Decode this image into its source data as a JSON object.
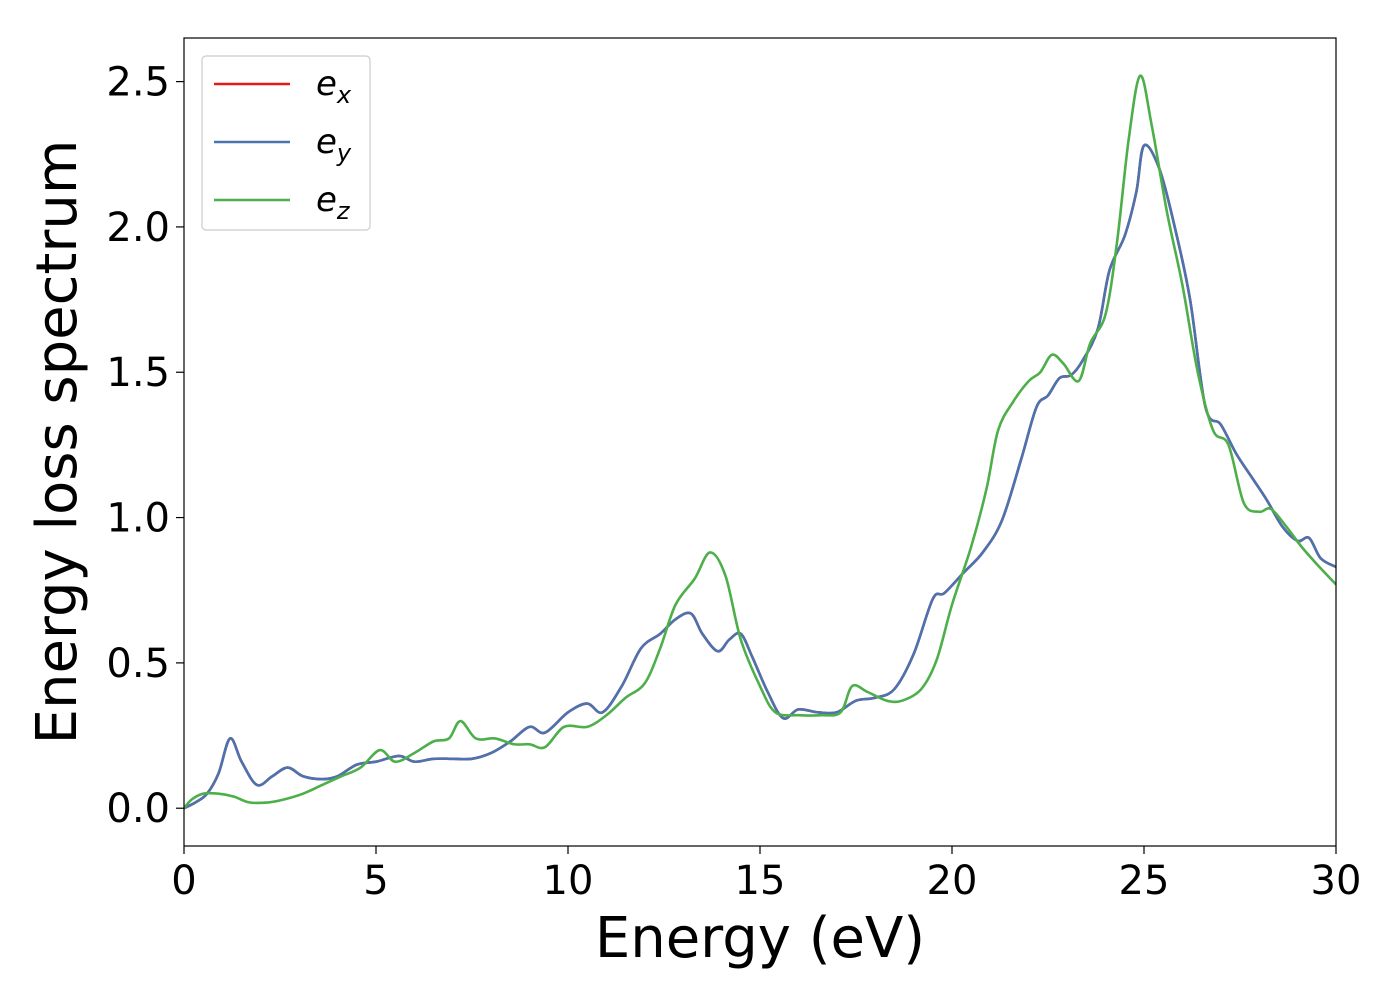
{
  "chart_data": {
    "type": "line",
    "title": "",
    "xlabel": "Energy (eV)",
    "ylabel": "Energy loss spectrum",
    "xlim": [
      0,
      30
    ],
    "ylim": [
      -0.13,
      2.65
    ],
    "x_ticks": [
      0,
      5,
      10,
      15,
      20,
      25,
      30
    ],
    "x_tick_labels": [
      "0",
      "5",
      "10",
      "15",
      "20",
      "25",
      "30"
    ],
    "y_ticks": [
      0.0,
      0.5,
      1.0,
      1.5,
      2.0,
      2.5
    ],
    "y_tick_labels": [
      "0.0",
      "0.5",
      "1.0",
      "1.5",
      "2.0",
      "2.5"
    ],
    "grid": false,
    "legend_position": "top-left",
    "series": [
      {
        "name": "e",
        "subscript": "x",
        "color": "#e41a1c",
        "points": [
          [
            0,
            0
          ],
          [
            0.3,
            0.02
          ],
          [
            0.6,
            0.05
          ],
          [
            0.9,
            0.12
          ],
          [
            1.2,
            0.24
          ],
          [
            1.5,
            0.16
          ],
          [
            1.9,
            0.08
          ],
          [
            2.3,
            0.11
          ],
          [
            2.7,
            0.14
          ],
          [
            3.1,
            0.11
          ],
          [
            3.6,
            0.1
          ],
          [
            4,
            0.11
          ],
          [
            4.5,
            0.15
          ],
          [
            5,
            0.16
          ],
          [
            5.6,
            0.18
          ],
          [
            6,
            0.16
          ],
          [
            6.5,
            0.17
          ],
          [
            7,
            0.17
          ],
          [
            7.5,
            0.17
          ],
          [
            8,
            0.19
          ],
          [
            8.5,
            0.23
          ],
          [
            9,
            0.28
          ],
          [
            9.4,
            0.26
          ],
          [
            10,
            0.33
          ],
          [
            10.5,
            0.36
          ],
          [
            10.9,
            0.33
          ],
          [
            11.4,
            0.42
          ],
          [
            11.9,
            0.55
          ],
          [
            12.4,
            0.6
          ],
          [
            12.8,
            0.65
          ],
          [
            13.2,
            0.67
          ],
          [
            13.5,
            0.6
          ],
          [
            13.9,
            0.54
          ],
          [
            14.2,
            0.58
          ],
          [
            14.5,
            0.6
          ],
          [
            14.8,
            0.52
          ],
          [
            15.2,
            0.4
          ],
          [
            15.6,
            0.31
          ],
          [
            16,
            0.34
          ],
          [
            16.5,
            0.33
          ],
          [
            17,
            0.33
          ],
          [
            17.5,
            0.37
          ],
          [
            18,
            0.38
          ],
          [
            18.5,
            0.41
          ],
          [
            19,
            0.53
          ],
          [
            19.5,
            0.72
          ],
          [
            19.8,
            0.74
          ],
          [
            20.3,
            0.81
          ],
          [
            20.8,
            0.88
          ],
          [
            21.3,
            0.99
          ],
          [
            21.8,
            1.2
          ],
          [
            22.2,
            1.38
          ],
          [
            22.5,
            1.42
          ],
          [
            22.8,
            1.48
          ],
          [
            23.1,
            1.49
          ],
          [
            23.4,
            1.54
          ],
          [
            23.8,
            1.65
          ],
          [
            24.1,
            1.85
          ],
          [
            24.5,
            1.97
          ],
          [
            24.8,
            2.12
          ],
          [
            25,
            2.28
          ],
          [
            25.4,
            2.2
          ],
          [
            25.8,
            2.0
          ],
          [
            26.2,
            1.75
          ],
          [
            26.6,
            1.38
          ],
          [
            27,
            1.32
          ],
          [
            27.4,
            1.22
          ],
          [
            27.8,
            1.14
          ],
          [
            28.2,
            1.06
          ],
          [
            28.6,
            0.97
          ],
          [
            29,
            0.92
          ],
          [
            29.3,
            0.93
          ],
          [
            29.6,
            0.86
          ],
          [
            30,
            0.83
          ]
        ]
      },
      {
        "name": "e",
        "subscript": "y",
        "color": "#4a73b0",
        "points": [
          [
            0,
            0
          ],
          [
            0.3,
            0.02
          ],
          [
            0.6,
            0.05
          ],
          [
            0.9,
            0.12
          ],
          [
            1.2,
            0.24
          ],
          [
            1.5,
            0.16
          ],
          [
            1.9,
            0.08
          ],
          [
            2.3,
            0.11
          ],
          [
            2.7,
            0.14
          ],
          [
            3.1,
            0.11
          ],
          [
            3.6,
            0.1
          ],
          [
            4,
            0.11
          ],
          [
            4.5,
            0.15
          ],
          [
            5,
            0.16
          ],
          [
            5.6,
            0.18
          ],
          [
            6,
            0.16
          ],
          [
            6.5,
            0.17
          ],
          [
            7,
            0.17
          ],
          [
            7.5,
            0.17
          ],
          [
            8,
            0.19
          ],
          [
            8.5,
            0.23
          ],
          [
            9,
            0.28
          ],
          [
            9.4,
            0.26
          ],
          [
            10,
            0.33
          ],
          [
            10.5,
            0.36
          ],
          [
            10.9,
            0.33
          ],
          [
            11.4,
            0.42
          ],
          [
            11.9,
            0.55
          ],
          [
            12.4,
            0.6
          ],
          [
            12.8,
            0.65
          ],
          [
            13.2,
            0.67
          ],
          [
            13.5,
            0.6
          ],
          [
            13.9,
            0.54
          ],
          [
            14.2,
            0.58
          ],
          [
            14.5,
            0.6
          ],
          [
            14.8,
            0.52
          ],
          [
            15.2,
            0.4
          ],
          [
            15.6,
            0.31
          ],
          [
            16,
            0.34
          ],
          [
            16.5,
            0.33
          ],
          [
            17,
            0.33
          ],
          [
            17.5,
            0.37
          ],
          [
            18,
            0.38
          ],
          [
            18.5,
            0.41
          ],
          [
            19,
            0.53
          ],
          [
            19.5,
            0.72
          ],
          [
            19.8,
            0.74
          ],
          [
            20.3,
            0.81
          ],
          [
            20.8,
            0.88
          ],
          [
            21.3,
            0.99
          ],
          [
            21.8,
            1.2
          ],
          [
            22.2,
            1.38
          ],
          [
            22.5,
            1.42
          ],
          [
            22.8,
            1.48
          ],
          [
            23.1,
            1.49
          ],
          [
            23.4,
            1.54
          ],
          [
            23.8,
            1.65
          ],
          [
            24.1,
            1.85
          ],
          [
            24.5,
            1.97
          ],
          [
            24.8,
            2.12
          ],
          [
            25,
            2.28
          ],
          [
            25.4,
            2.2
          ],
          [
            25.8,
            2.0
          ],
          [
            26.2,
            1.75
          ],
          [
            26.6,
            1.38
          ],
          [
            27,
            1.32
          ],
          [
            27.4,
            1.22
          ],
          [
            27.8,
            1.14
          ],
          [
            28.2,
            1.06
          ],
          [
            28.6,
            0.97
          ],
          [
            29,
            0.92
          ],
          [
            29.3,
            0.93
          ],
          [
            29.6,
            0.86
          ],
          [
            30,
            0.83
          ]
        ]
      },
      {
        "name": "e",
        "subscript": "z",
        "color": "#4daf4a",
        "points": [
          [
            0,
            0
          ],
          [
            0.2,
            0.03
          ],
          [
            0.5,
            0.05
          ],
          [
            0.9,
            0.05
          ],
          [
            1.3,
            0.04
          ],
          [
            1.7,
            0.02
          ],
          [
            2.2,
            0.02
          ],
          [
            2.6,
            0.03
          ],
          [
            3.1,
            0.05
          ],
          [
            3.6,
            0.08
          ],
          [
            4.1,
            0.11
          ],
          [
            4.6,
            0.14
          ],
          [
            5.1,
            0.2
          ],
          [
            5.5,
            0.16
          ],
          [
            6,
            0.19
          ],
          [
            6.5,
            0.23
          ],
          [
            6.9,
            0.24
          ],
          [
            7.2,
            0.3
          ],
          [
            7.6,
            0.24
          ],
          [
            8.1,
            0.24
          ],
          [
            8.6,
            0.22
          ],
          [
            9,
            0.22
          ],
          [
            9.4,
            0.21
          ],
          [
            9.9,
            0.28
          ],
          [
            10.5,
            0.28
          ],
          [
            11,
            0.32
          ],
          [
            11.5,
            0.38
          ],
          [
            12,
            0.43
          ],
          [
            12.4,
            0.55
          ],
          [
            12.8,
            0.7
          ],
          [
            13.3,
            0.79
          ],
          [
            13.7,
            0.88
          ],
          [
            14.1,
            0.8
          ],
          [
            14.5,
            0.58
          ],
          [
            15,
            0.42
          ],
          [
            15.4,
            0.33
          ],
          [
            16,
            0.32
          ],
          [
            16.6,
            0.32
          ],
          [
            17.1,
            0.33
          ],
          [
            17.4,
            0.42
          ],
          [
            17.8,
            0.4
          ],
          [
            18.3,
            0.37
          ],
          [
            18.7,
            0.37
          ],
          [
            19.2,
            0.41
          ],
          [
            19.6,
            0.51
          ],
          [
            20,
            0.7
          ],
          [
            20.5,
            0.9
          ],
          [
            20.9,
            1.1
          ],
          [
            21.2,
            1.3
          ],
          [
            21.6,
            1.4
          ],
          [
            22,
            1.47
          ],
          [
            22.3,
            1.5
          ],
          [
            22.6,
            1.56
          ],
          [
            22.9,
            1.53
          ],
          [
            23.3,
            1.47
          ],
          [
            23.6,
            1.6
          ],
          [
            24,
            1.7
          ],
          [
            24.3,
            1.95
          ],
          [
            24.6,
            2.3
          ],
          [
            24.9,
            2.52
          ],
          [
            25.2,
            2.35
          ],
          [
            25.6,
            2.05
          ],
          [
            26,
            1.8
          ],
          [
            26.4,
            1.5
          ],
          [
            26.8,
            1.3
          ],
          [
            27.2,
            1.25
          ],
          [
            27.6,
            1.05
          ],
          [
            28,
            1.02
          ],
          [
            28.3,
            1.03
          ],
          [
            28.7,
            0.97
          ],
          [
            29.1,
            0.9
          ],
          [
            29.5,
            0.84
          ],
          [
            30,
            0.77
          ]
        ]
      }
    ]
  }
}
